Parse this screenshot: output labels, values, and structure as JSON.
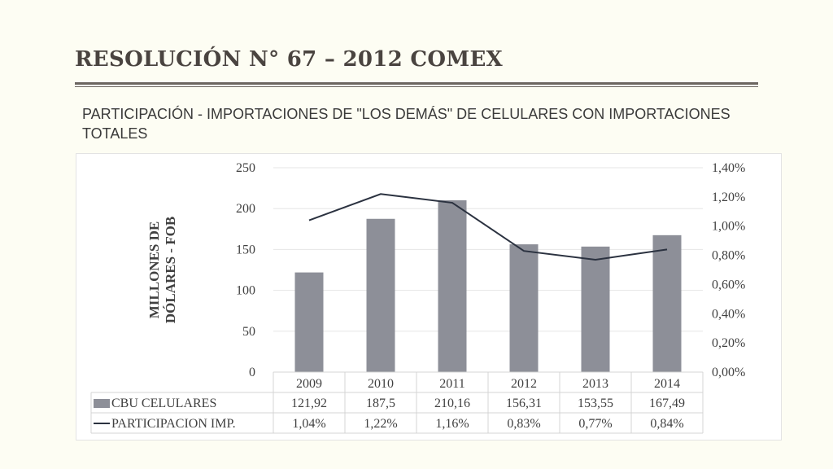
{
  "page": {
    "title": "RESOLUCIÓN N° 67 – 2012 COMEX",
    "subtitle": "PARTICIPACIÓN - IMPORTACIONES DE \"LOS DEMÁS\" DE CELULARES CON IMPORTACIONES TOTALES"
  },
  "colors": {
    "bar": "#8d8f98",
    "line": "#2b3240",
    "grid": "#e6e6e6"
  },
  "chart_data": {
    "type": "bar",
    "title": "",
    "categories": [
      "2009",
      "2010",
      "2011",
      "2012",
      "2013",
      "2014"
    ],
    "ylabel": "MILLONES DE DÓLARES - FOB",
    "ylim": [
      0,
      250
    ],
    "y_ticks": [
      "0",
      "50",
      "100",
      "150",
      "200",
      "250"
    ],
    "y2lim": [
      0,
      1.4
    ],
    "y2_ticks": [
      "0,00%",
      "0,20%",
      "0,40%",
      "0,60%",
      "0,80%",
      "1,00%",
      "1,20%",
      "1,40%"
    ],
    "grid": true,
    "legend": "data-table",
    "series": [
      {
        "name": "CBU CELULARES",
        "type": "bar",
        "axis": "left",
        "values": [
          121.92,
          187.5,
          210.16,
          156.31,
          153.55,
          167.49
        ],
        "labels": [
          "121,92",
          "187,5",
          "210,16",
          "156,31",
          "153,55",
          "167,49"
        ]
      },
      {
        "name": "PARTICIPACION IMP.",
        "type": "line",
        "axis": "right",
        "values": [
          1.04,
          1.22,
          1.16,
          0.83,
          0.77,
          0.84
        ],
        "labels": [
          "1,04%",
          "1,22%",
          "1,16%",
          "0,83%",
          "0,77%",
          "0,84%"
        ]
      }
    ]
  }
}
